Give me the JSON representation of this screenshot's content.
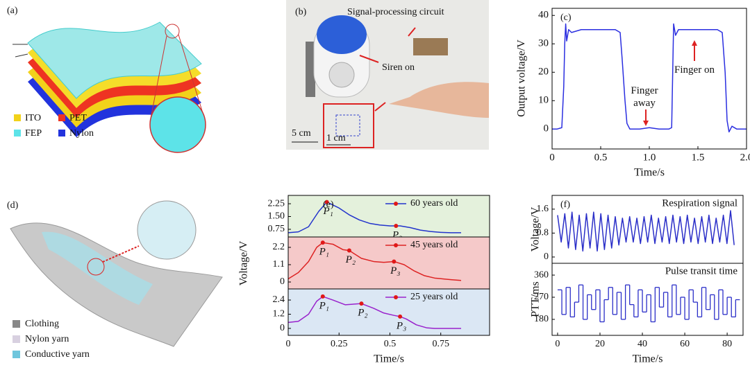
{
  "panel_a": {
    "label": "(a)",
    "legend": [
      "ITO",
      "PET",
      "FEP",
      "Nylon"
    ]
  },
  "panel_b": {
    "label": "(b)",
    "annotations": [
      "Signal-processing circuit",
      "Siren on",
      "5 cm",
      "1 cm"
    ]
  },
  "panel_d": {
    "label": "(d)",
    "legend": [
      "Clothing",
      "Nylon yarn",
      "Conductive yarn"
    ]
  },
  "chart_data": [
    {
      "type": "line",
      "label": "(c)",
      "xlabel": "Time/s",
      "ylabel": "Output voltage/V",
      "xlim": [
        0,
        2
      ],
      "xticks": [
        0,
        0.5,
        {
          "value": 1,
          "label": "1.0"
        },
        1.5,
        {
          "value": 2,
          "label": "2.0"
        }
      ],
      "ylim": [
        -7,
        42.5
      ],
      "yticks": [
        0,
        10,
        20,
        30,
        40
      ],
      "annotations": [
        "Finger away",
        "Finger on"
      ],
      "x": [
        0,
        0.05,
        0.1,
        0.12,
        0.13,
        0.14,
        0.15,
        0.17,
        0.2,
        0.3,
        0.4,
        0.5,
        0.6,
        0.65,
        0.7,
        0.72,
        0.75,
        0.77,
        0.8,
        0.9,
        1.0,
        1.1,
        1.2,
        1.23,
        1.25,
        1.27,
        1.3,
        1.4,
        1.5,
        1.6,
        1.7,
        1.75,
        1.78,
        1.8,
        1.82,
        1.85,
        1.9,
        2.0
      ],
      "series": [
        {
          "color": "#2a2ee0",
          "values": [
            0,
            0,
            0.5,
            15,
            30,
            37,
            31,
            35,
            34,
            35,
            35,
            35,
            35,
            35,
            34,
            25,
            10,
            2,
            0,
            0,
            0.5,
            0,
            0,
            0.5,
            37,
            33,
            35,
            35,
            35,
            35,
            35,
            34,
            20,
            3,
            -1,
            1,
            0,
            0
          ]
        }
      ]
    },
    {
      "type": "line",
      "label": "(e)",
      "background": "#e4f1dc",
      "xlim": [
        0,
        0.99
      ],
      "ylim": [
        0.3,
        2.74
      ],
      "yticks": [
        0.75,
        {
          "value": 1.5,
          "label": "1.50"
        },
        2.25
      ],
      "x": [
        0,
        0.05,
        0.1,
        0.15,
        0.19,
        0.25,
        0.3,
        0.35,
        0.4,
        0.45,
        0.5,
        0.55,
        0.6,
        0.65,
        0.7,
        0.75,
        0.8,
        0.85
      ],
      "series": [
        {
          "name": "60 years old",
          "color": "#2233cc",
          "values": [
            0.55,
            0.6,
            0.9,
            1.8,
            2.35,
            2.0,
            1.6,
            1.3,
            1.1,
            1.0,
            0.95,
            0.95,
            0.85,
            0.7,
            0.62,
            0.57,
            0.55,
            0.55
          ]
        }
      ],
      "peaks": [
        {
          "x": 0.19,
          "y": 2.35,
          "label": "P₁"
        },
        {
          "x": 0.53,
          "y": 0.95,
          "label": "P₃"
        }
      ]
    },
    {
      "type": "line",
      "ylabel": "Voltage/V",
      "background": "#f5c9c9",
      "xlim": [
        0,
        0.99
      ],
      "ylim": [
        -0.44,
        2.86
      ],
      "yticks": [
        0,
        1.1,
        2.2
      ],
      "x": [
        0,
        0.05,
        0.1,
        0.14,
        0.17,
        0.22,
        0.27,
        0.3,
        0.36,
        0.42,
        0.47,
        0.52,
        0.57,
        0.62,
        0.67,
        0.72,
        0.8,
        0.85
      ],
      "series": [
        {
          "name": "45 years old",
          "color": "#dd2222",
          "values": [
            0.2,
            0.6,
            1.3,
            2.2,
            2.5,
            2.4,
            2.05,
            2.0,
            1.5,
            1.3,
            1.25,
            1.3,
            1.1,
            0.7,
            0.4,
            0.25,
            0.15,
            0.1
          ]
        }
      ],
      "peaks": [
        {
          "x": 0.17,
          "y": 2.5,
          "label": "P₁"
        },
        {
          "x": 0.3,
          "y": 2.0,
          "label": "P₂"
        },
        {
          "x": 0.52,
          "y": 1.3,
          "label": "P₃"
        }
      ]
    },
    {
      "type": "line",
      "xlabel": "Time/s",
      "background": "#dbe7f4",
      "xlim": [
        0,
        0.99
      ],
      "xticks": [
        0,
        0.25,
        0.5,
        0.75
      ],
      "ylim": [
        -0.59,
        3.34
      ],
      "yticks": [
        0,
        1.2,
        2.4
      ],
      "x": [
        0,
        0.05,
        0.1,
        0.14,
        0.17,
        0.22,
        0.28,
        0.36,
        0.42,
        0.47,
        0.52,
        0.55,
        0.58,
        0.63,
        0.68,
        0.72,
        0.8,
        0.85
      ],
      "series": [
        {
          "name": "25 years old",
          "color": "#9922cc",
          "values": [
            0.5,
            0.6,
            1.2,
            2.3,
            2.7,
            2.4,
            2.0,
            2.1,
            1.7,
            1.3,
            1.1,
            1.0,
            0.8,
            0.3,
            0.05,
            0,
            0,
            0
          ]
        }
      ],
      "peaks": [
        {
          "x": 0.17,
          "y": 2.7,
          "label": "P₁"
        },
        {
          "x": 0.36,
          "y": 2.1,
          "label": "P₂"
        },
        {
          "x": 0.55,
          "y": 1.0,
          "label": "P₃"
        }
      ]
    },
    {
      "type": "line",
      "label": "(f)",
      "title": "Respiration signal",
      "ylabel": "Voltage/V",
      "xlim": [
        -2.6,
        87.5
      ],
      "ylim": [
        -0.21,
        2.06
      ],
      "yticks": [
        0,
        0.8,
        1.6
      ],
      "x": [
        0,
        1.7,
        3.4,
        5.1,
        6.8,
        8.5,
        10.2,
        11.9,
        13.6,
        15.3,
        17,
        18.7,
        20.4,
        22.1,
        23.8,
        25.5,
        27.2,
        28.9,
        30.6,
        32.3,
        34,
        35.7,
        37.4,
        39.1,
        40.8,
        42.5,
        44.2,
        45.9,
        47.6,
        49.3,
        51,
        52.7,
        54.4,
        56.1,
        57.8,
        59.5,
        61.2,
        62.9,
        64.6,
        66.3,
        68,
        69.7,
        71.4,
        73.1,
        74.8,
        76.5,
        78.2,
        79.9,
        81.6,
        83.3
      ],
      "series": [
        {
          "color": "#2a2ec8",
          "values": [
            1.4,
            0.5,
            1.45,
            0.3,
            1.5,
            0.25,
            1.4,
            0.2,
            1.45,
            0.3,
            1.5,
            0.2,
            1.45,
            0.25,
            1.4,
            0.3,
            1.35,
            0.4,
            1.3,
            0.5,
            1.35,
            0.5,
            1.3,
            0.45,
            1.35,
            0.5,
            1.4,
            0.45,
            1.3,
            0.5,
            1.35,
            0.45,
            1.4,
            0.5,
            1.35,
            0.45,
            1.4,
            0.5,
            1.3,
            0.45,
            1.35,
            0.5,
            1.4,
            0.45,
            1.3,
            0.5,
            1.4,
            0.45,
            1.55,
            0.4
          ]
        }
      ]
    },
    {
      "type": "step",
      "title": "Pulse transit time",
      "ylabel": "PTT/ms",
      "xlabel": "Time/s",
      "xlim": [
        -2.6,
        87.5
      ],
      "xticks": [
        0,
        20,
        40,
        60,
        80
      ],
      "ylim": [
        115,
        408
      ],
      "yticks": [
        180,
        270,
        360
      ],
      "x": [
        0,
        2,
        4,
        6,
        8,
        10,
        12,
        14,
        16,
        18,
        20,
        22,
        24,
        26,
        28,
        30,
        32,
        34,
        36,
        38,
        40,
        42,
        44,
        46,
        48,
        50,
        52,
        54,
        56,
        58,
        60,
        62,
        64,
        66,
        68,
        70,
        72,
        74,
        76,
        78,
        80,
        82,
        84
      ],
      "series": [
        {
          "color": "#2a2ec8",
          "values": [
            300,
            200,
            310,
            190,
            250,
            320,
            180,
            280,
            220,
            300,
            170,
            260,
            310,
            200,
            290,
            180,
            320,
            240,
            190,
            300,
            210,
            280,
            170,
            310,
            230,
            290,
            190,
            320,
            200,
            270,
            180,
            300,
            250,
            190,
            310,
            220,
            280,
            180,
            300,
            200,
            270,
            190,
            260
          ]
        }
      ]
    }
  ]
}
